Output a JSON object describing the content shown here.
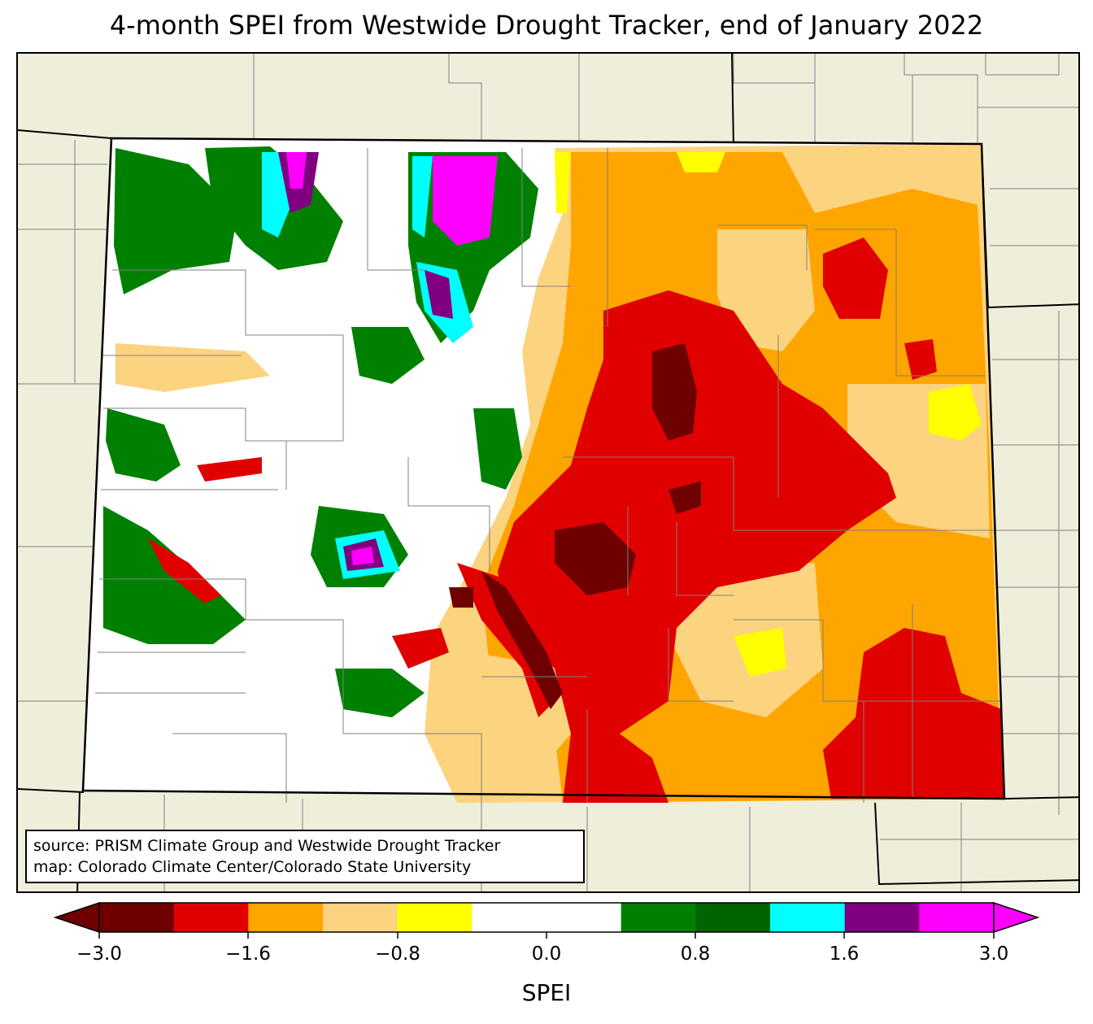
{
  "title": "4-month SPEI from Westwide Drought Tracker, end of January 2022",
  "source": {
    "line1": "source: PRISM Climate Group and Westwide Drought Tracker",
    "line2": "map: Colorado Climate Center/Colorado State University"
  },
  "colorbar": {
    "label": "SPEI",
    "ticks": [
      "−3.0",
      "−1.6",
      "−0.8",
      "0.0",
      "0.8",
      "1.6",
      "3.0"
    ],
    "bins": [
      {
        "range": "< -3.0",
        "color": "#6e0000"
      },
      {
        "range": "-3.0 to -2.0",
        "color": "#e00000"
      },
      {
        "range": "-2.0 to -1.6",
        "color": "#e00000"
      },
      {
        "range": "-1.6 to -1.2",
        "color": "#ffa500"
      },
      {
        "range": "-1.2 to -0.8",
        "color": "#fcd37f"
      },
      {
        "range": "-0.8 to -0.4",
        "color": "#ffff00"
      },
      {
        "range": "-0.4 to 0.4",
        "color": "#ffffff"
      },
      {
        "range": "0.4 to 0.8",
        "color": "#008000"
      },
      {
        "range": "0.8 to 1.2",
        "color": "#006400"
      },
      {
        "range": "1.2 to 1.6",
        "color": "#00ffff"
      },
      {
        "range": "1.6 to 2.0",
        "color": "#800080"
      },
      {
        "range": "> 2.0",
        "color": "#ff00ff"
      }
    ]
  },
  "colors": {
    "background": "#efeedb",
    "extreme_dry": "#6e0000",
    "severe_dry": "#e00000",
    "moderate_dry": "#ffa500",
    "mild_dry": "#fcd37f",
    "abnormal_dry": "#ffff00",
    "near_normal": "#ffffff",
    "wet1": "#008000",
    "wet2": "#006400",
    "wet3": "#00ffff",
    "wet4": "#800080",
    "wet5": "#ff00ff"
  }
}
